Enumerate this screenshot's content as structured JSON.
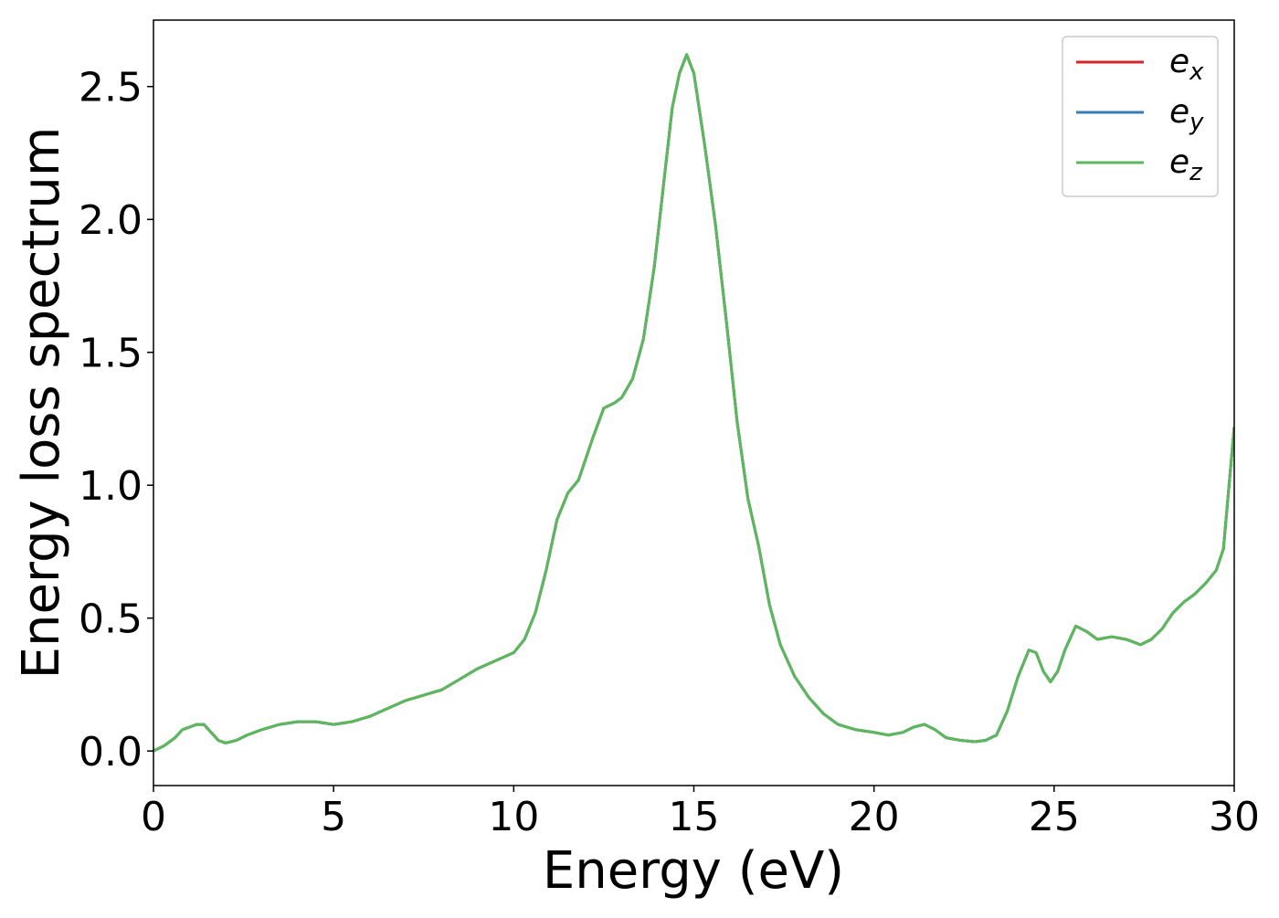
{
  "chart_data": {
    "type": "line",
    "xlabel": "Energy (eV)",
    "ylabel": "Energy loss spectrum",
    "xlim": [
      0,
      30
    ],
    "ylim": [
      -0.13,
      2.75
    ],
    "x_ticks": [
      0,
      5,
      10,
      15,
      20,
      25,
      30
    ],
    "x_tick_labels": [
      "0",
      "5",
      "10",
      "15",
      "20",
      "25",
      "30"
    ],
    "y_ticks": [
      0.0,
      0.5,
      1.0,
      1.5,
      2.0,
      2.5
    ],
    "y_tick_labels": [
      "0.0",
      "0.5",
      "1.0",
      "1.5",
      "2.0",
      "2.5"
    ],
    "grid": false,
    "legend_position": "top-right",
    "series": [
      {
        "name": "e",
        "subscript": "x",
        "color": "#d62728"
      },
      {
        "name": "e",
        "subscript": "y",
        "color": "#377eb8"
      },
      {
        "name": "e",
        "subscript": "z",
        "color": "#5cb85c"
      }
    ],
    "x": [
      0,
      0.3,
      0.6,
      0.8,
      1.0,
      1.2,
      1.4,
      1.6,
      1.8,
      2.0,
      2.3,
      2.6,
      3.0,
      3.5,
      4.0,
      4.5,
      5.0,
      5.5,
      6.0,
      6.5,
      7.0,
      7.5,
      8.0,
      8.5,
      9.0,
      9.5,
      10.0,
      10.3,
      10.6,
      10.9,
      11.2,
      11.5,
      11.8,
      12.0,
      12.2,
      12.5,
      12.8,
      13.0,
      13.3,
      13.6,
      13.9,
      14.2,
      14.4,
      14.6,
      14.8,
      15.0,
      15.3,
      15.6,
      15.9,
      16.2,
      16.5,
      16.8,
      17.1,
      17.4,
      17.8,
      18.2,
      18.6,
      19.0,
      19.5,
      20.0,
      20.4,
      20.8,
      21.1,
      21.4,
      21.7,
      22.0,
      22.4,
      22.8,
      23.1,
      23.4,
      23.7,
      24.0,
      24.3,
      24.5,
      24.7,
      24.9,
      25.1,
      25.3,
      25.6,
      25.9,
      26.2,
      26.6,
      27.0,
      27.4,
      27.7,
      28.0,
      28.3,
      28.6,
      28.9,
      29.2,
      29.5,
      29.7,
      30.0
    ],
    "values_ex": [
      0.0,
      0.02,
      0.05,
      0.08,
      0.09,
      0.1,
      0.1,
      0.07,
      0.04,
      0.03,
      0.04,
      0.06,
      0.08,
      0.1,
      0.11,
      0.11,
      0.1,
      0.11,
      0.13,
      0.16,
      0.19,
      0.21,
      0.23,
      0.27,
      0.31,
      0.34,
      0.37,
      0.42,
      0.52,
      0.68,
      0.87,
      0.97,
      1.02,
      1.1,
      1.18,
      1.29,
      1.31,
      1.33,
      1.4,
      1.55,
      1.82,
      2.18,
      2.42,
      2.55,
      2.62,
      2.55,
      2.28,
      1.98,
      1.62,
      1.24,
      0.95,
      0.77,
      0.55,
      0.4,
      0.28,
      0.2,
      0.14,
      0.1,
      0.08,
      0.07,
      0.06,
      0.07,
      0.09,
      0.1,
      0.08,
      0.05,
      0.04,
      0.035,
      0.04,
      0.06,
      0.15,
      0.28,
      0.38,
      0.37,
      0.3,
      0.26,
      0.3,
      0.38,
      0.47,
      0.45,
      0.42,
      0.43,
      0.42,
      0.4,
      0.42,
      0.46,
      0.52,
      0.56,
      0.59,
      0.63,
      0.68,
      0.76,
      1.22
    ],
    "values_ey": [
      0.0,
      0.02,
      0.05,
      0.08,
      0.09,
      0.1,
      0.1,
      0.07,
      0.04,
      0.03,
      0.04,
      0.06,
      0.08,
      0.1,
      0.11,
      0.11,
      0.1,
      0.11,
      0.13,
      0.16,
      0.19,
      0.21,
      0.23,
      0.27,
      0.31,
      0.34,
      0.37,
      0.42,
      0.52,
      0.68,
      0.87,
      0.97,
      1.02,
      1.1,
      1.18,
      1.29,
      1.31,
      1.33,
      1.4,
      1.55,
      1.82,
      2.18,
      2.42,
      2.55,
      2.62,
      2.55,
      2.28,
      1.98,
      1.62,
      1.24,
      0.95,
      0.77,
      0.55,
      0.4,
      0.28,
      0.2,
      0.14,
      0.1,
      0.08,
      0.07,
      0.06,
      0.07,
      0.09,
      0.1,
      0.08,
      0.05,
      0.04,
      0.035,
      0.04,
      0.06,
      0.15,
      0.28,
      0.38,
      0.37,
      0.3,
      0.26,
      0.3,
      0.38,
      0.47,
      0.45,
      0.42,
      0.43,
      0.42,
      0.4,
      0.42,
      0.46,
      0.52,
      0.56,
      0.59,
      0.63,
      0.68,
      0.76,
      1.22
    ],
    "values_ez": [
      0.0,
      0.02,
      0.05,
      0.08,
      0.09,
      0.1,
      0.1,
      0.07,
      0.04,
      0.03,
      0.04,
      0.06,
      0.08,
      0.1,
      0.11,
      0.11,
      0.1,
      0.11,
      0.13,
      0.16,
      0.19,
      0.21,
      0.23,
      0.27,
      0.31,
      0.34,
      0.37,
      0.42,
      0.52,
      0.68,
      0.87,
      0.97,
      1.02,
      1.1,
      1.18,
      1.29,
      1.31,
      1.33,
      1.4,
      1.55,
      1.82,
      2.18,
      2.42,
      2.55,
      2.62,
      2.55,
      2.28,
      1.98,
      1.62,
      1.24,
      0.95,
      0.77,
      0.55,
      0.4,
      0.28,
      0.2,
      0.14,
      0.1,
      0.08,
      0.07,
      0.06,
      0.07,
      0.09,
      0.1,
      0.08,
      0.05,
      0.04,
      0.035,
      0.04,
      0.06,
      0.15,
      0.28,
      0.38,
      0.37,
      0.3,
      0.26,
      0.3,
      0.38,
      0.47,
      0.45,
      0.42,
      0.43,
      0.42,
      0.4,
      0.42,
      0.46,
      0.52,
      0.56,
      0.59,
      0.63,
      0.68,
      0.76,
      1.22
    ]
  }
}
